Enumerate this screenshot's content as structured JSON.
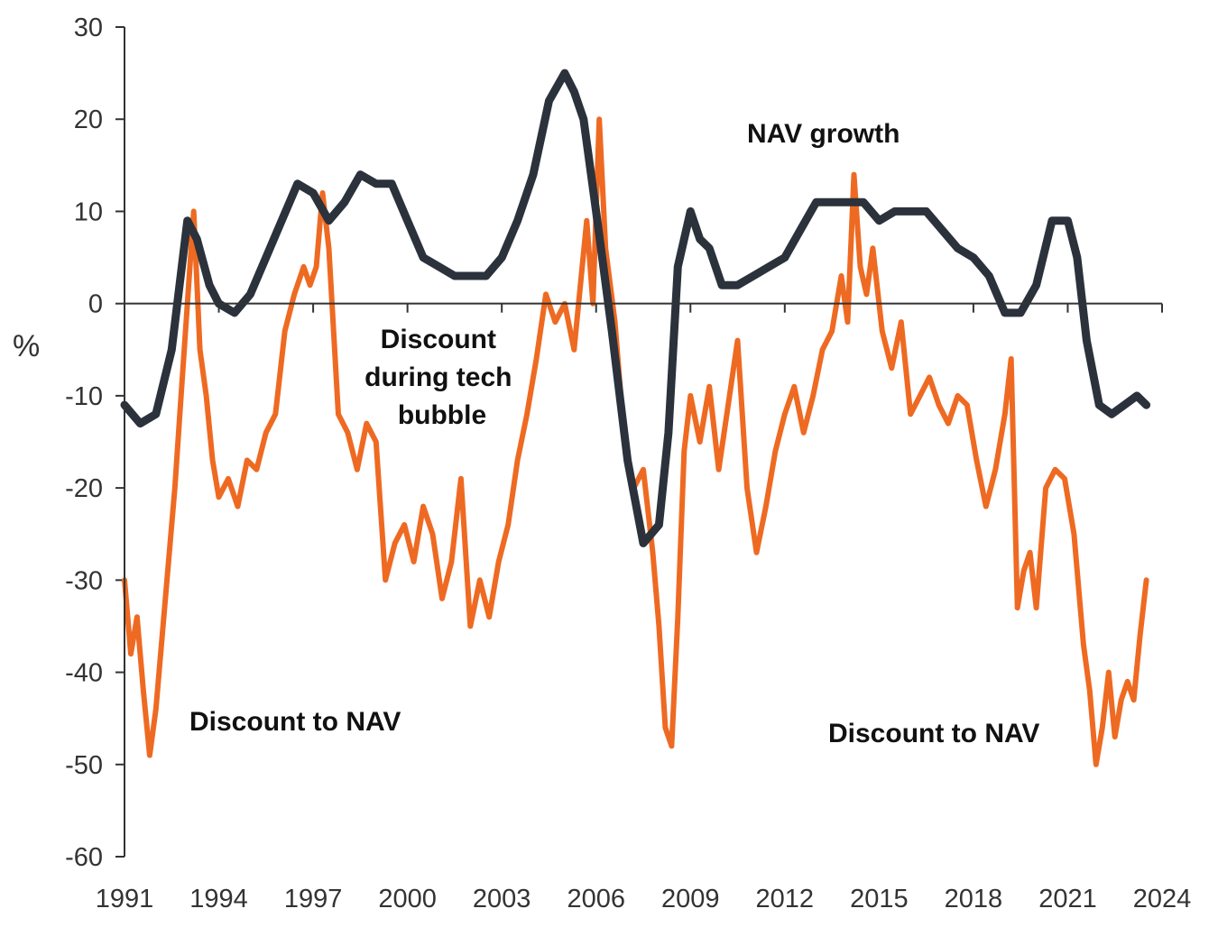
{
  "chart_data": {
    "type": "line",
    "ylabel": "%",
    "xlabel": "",
    "ylim": [
      -60,
      30
    ],
    "xlim": [
      1991,
      2024
    ],
    "y_ticks": [
      30,
      20,
      10,
      0,
      -10,
      -20,
      -30,
      -40,
      -50,
      -60
    ],
    "x_ticks": [
      1991,
      1994,
      1997,
      2000,
      2003,
      2006,
      2009,
      2012,
      2015,
      2018,
      2021,
      2024
    ],
    "grid": false,
    "colors": {
      "nav_growth": "#2b323c",
      "discount": "#ee6a22",
      "axis": "#333333"
    },
    "annotations": [
      {
        "id": "nav-growth",
        "text": "NAV growth"
      },
      {
        "id": "tech-bubble",
        "lines": [
          "Discount",
          "during tech",
          "bubble"
        ]
      },
      {
        "id": "discount-left",
        "text": "Discount to NAV"
      },
      {
        "id": "discount-right",
        "text": "Discount to NAV"
      }
    ],
    "series": [
      {
        "id": "discount",
        "x": [
          1991.0,
          1991.2,
          1991.4,
          1991.6,
          1991.8,
          1992.0,
          1992.2,
          1992.4,
          1992.6,
          1992.8,
          1993.0,
          1993.2,
          1993.4,
          1993.6,
          1993.8,
          1994.0,
          1994.3,
          1994.6,
          1994.9,
          1995.2,
          1995.5,
          1995.8,
          1996.1,
          1996.4,
          1996.7,
          1996.9,
          1997.1,
          1997.3,
          1997.5,
          1997.8,
          1998.1,
          1998.4,
          1998.7,
          1999.0,
          1999.3,
          1999.6,
          1999.9,
          2000.2,
          2000.5,
          2000.8,
          2001.1,
          2001.4,
          2001.7,
          2002.0,
          2002.3,
          2002.6,
          2002.9,
          2003.2,
          2003.5,
          2003.8,
          2004.1,
          2004.4,
          2004.7,
          2005.0,
          2005.3,
          2005.5,
          2005.7,
          2005.9,
          2006.1,
          2006.3,
          2006.6,
          2006.9,
          2007.2,
          2007.5,
          2007.8,
          2008.0,
          2008.2,
          2008.4,
          2008.6,
          2008.8,
          2009.0,
          2009.3,
          2009.6,
          2009.9,
          2010.2,
          2010.5,
          2010.8,
          2011.1,
          2011.4,
          2011.7,
          2012.0,
          2012.3,
          2012.6,
          2012.9,
          2013.2,
          2013.5,
          2013.8,
          2014.0,
          2014.2,
          2014.4,
          2014.6,
          2014.8,
          2015.1,
          2015.4,
          2015.7,
          2016.0,
          2016.3,
          2016.6,
          2016.9,
          2017.2,
          2017.5,
          2017.8,
          2018.1,
          2018.4,
          2018.7,
          2019.0,
          2019.2,
          2019.4,
          2019.6,
          2019.8,
          2020.0,
          2020.3,
          2020.6,
          2020.9,
          2021.2,
          2021.5,
          2021.7,
          2021.9,
          2022.1,
          2022.3,
          2022.5,
          2022.7,
          2022.9,
          2023.1,
          2023.3,
          2023.5
        ],
        "values": [
          -30,
          -38,
          -34,
          -42,
          -49,
          -44,
          -36,
          -28,
          -20,
          -10,
          0,
          10,
          -5,
          -10,
          -17,
          -21,
          -19,
          -22,
          -17,
          -18,
          -14,
          -12,
          -3,
          1,
          4,
          2,
          4,
          12,
          6,
          -12,
          -14,
          -18,
          -13,
          -15,
          -30,
          -26,
          -24,
          -28,
          -22,
          -25,
          -32,
          -28,
          -19,
          -35,
          -30,
          -34,
          -28,
          -24,
          -17,
          -12,
          -6,
          1,
          -2,
          0,
          -5,
          2,
          9,
          0,
          20,
          6,
          -2,
          -15,
          -20,
          -18,
          -27,
          -35,
          -46,
          -48,
          -34,
          -16,
          -10,
          -15,
          -9,
          -18,
          -11,
          -4,
          -20,
          -27,
          -22,
          -16,
          -12,
          -9,
          -14,
          -10,
          -5,
          -3,
          3,
          -2,
          14,
          4,
          1,
          6,
          -3,
          -7,
          -2,
          -12,
          -10,
          -8,
          -11,
          -13,
          -10,
          -11,
          -17,
          -22,
          -18,
          -12,
          -6,
          -33,
          -29,
          -27,
          -33,
          -20,
          -18,
          -19,
          -25,
          -37,
          -42,
          -50,
          -46,
          -40,
          -47,
          -43,
          -41,
          -43,
          -36,
          -30
        ]
      },
      {
        "id": "nav_growth",
        "x": [
          1991.0,
          1991.5,
          1992.0,
          1992.5,
          1993.0,
          1993.3,
          1993.7,
          1994.0,
          1994.5,
          1995.0,
          1995.5,
          1996.0,
          1996.5,
          1997.0,
          1997.5,
          1998.0,
          1998.5,
          1999.0,
          1999.5,
          2000.0,
          2000.5,
          2001.0,
          2001.5,
          2002.0,
          2002.5,
          2003.0,
          2003.5,
          2004.0,
          2004.5,
          2005.0,
          2005.3,
          2005.6,
          2006.0,
          2006.5,
          2007.0,
          2007.5,
          2008.0,
          2008.3,
          2008.6,
          2009.0,
          2009.3,
          2009.6,
          2010.0,
          2010.5,
          2011.0,
          2011.5,
          2012.0,
          2012.5,
          2013.0,
          2013.5,
          2014.0,
          2014.5,
          2015.0,
          2015.5,
          2016.0,
          2016.5,
          2017.0,
          2017.5,
          2018.0,
          2018.5,
          2019.0,
          2019.5,
          2020.0,
          2020.5,
          2021.0,
          2021.3,
          2021.6,
          2022.0,
          2022.4,
          2022.8,
          2023.2,
          2023.5
        ],
        "values": [
          -11,
          -13,
          -12,
          -5,
          9,
          7,
          2,
          0,
          -1,
          1,
          5,
          9,
          13,
          12,
          9,
          11,
          14,
          13,
          13,
          9,
          5,
          4,
          3,
          3,
          3,
          5,
          9,
          14,
          22,
          25,
          23,
          20,
          10,
          -3,
          -17,
          -26,
          -24,
          -14,
          4,
          10,
          7,
          6,
          2,
          2,
          3,
          4,
          5,
          8,
          11,
          11,
          11,
          11,
          9,
          10,
          10,
          10,
          8,
          6,
          5,
          3,
          -1,
          -1,
          2,
          9,
          9,
          5,
          -4,
          -11,
          -12,
          -11,
          -10,
          -11
        ]
      }
    ]
  }
}
